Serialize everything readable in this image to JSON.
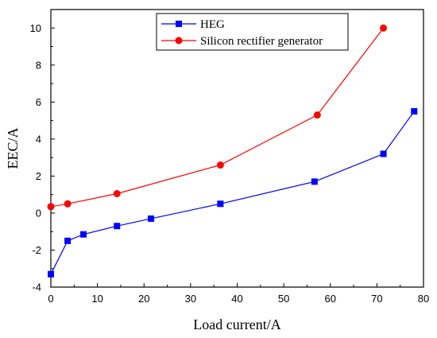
{
  "chart_data": {
    "type": "line",
    "xlabel": "Load current/A",
    "ylabel": "EEC/A",
    "xlim": [
      0,
      80
    ],
    "ylim": [
      -4,
      11
    ],
    "x_ticks": [
      0,
      10,
      20,
      30,
      40,
      50,
      60,
      70,
      80
    ],
    "y_ticks": [
      -4,
      -2,
      0,
      2,
      4,
      6,
      8,
      10
    ],
    "grid": false,
    "legend_position": "top-center",
    "series": [
      {
        "name": "HEG",
        "color": "#0000ff",
        "marker": "square",
        "x": [
          0,
          3.6,
          7,
          14.2,
          21.5,
          36.4,
          56.6,
          71.4,
          78
        ],
        "y": [
          -3.3,
          -1.5,
          -1.15,
          -0.7,
          -0.3,
          0.5,
          1.7,
          3.2,
          5.5
        ]
      },
      {
        "name": "Silicon rectifier generator",
        "color": "#ff0000",
        "marker": "circle",
        "x": [
          0,
          3.6,
          14.2,
          36.4,
          57.2,
          71.4
        ],
        "y": [
          0.35,
          0.5,
          1.05,
          2.6,
          5.3,
          10.0
        ]
      }
    ]
  }
}
